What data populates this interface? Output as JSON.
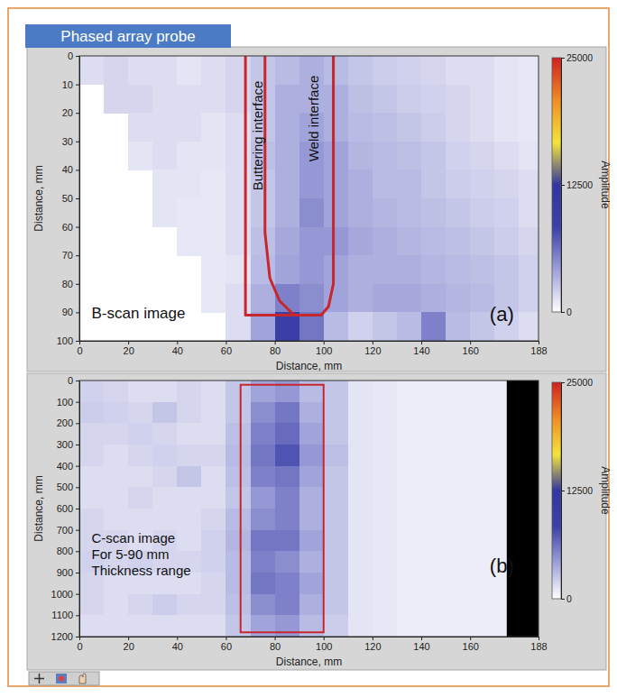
{
  "header": {
    "text": "Phased array probe",
    "color": "#4a7bc4"
  },
  "chart_data": [
    {
      "type": "heatmap",
      "x_label": "Distance, mm",
      "y_label": "Distance, mm",
      "xlim": [
        0,
        188
      ],
      "ylim": [
        100,
        0
      ],
      "xticks": [
        0,
        20,
        40,
        60,
        80,
        100,
        120,
        140,
        160,
        188
      ],
      "yticks": [
        0,
        10,
        20,
        30,
        40,
        50,
        60,
        70,
        80,
        90,
        100
      ],
      "cells": {
        "x_edges": [
          0,
          10,
          20,
          30,
          40,
          50,
          60,
          70,
          80,
          90,
          100,
          110,
          120,
          130,
          140,
          150,
          160,
          170,
          180,
          188
        ],
        "y_edges": [
          0,
          10,
          20,
          30,
          40,
          50,
          60,
          70,
          80,
          90,
          100
        ],
        "values": [
          [
            1500,
            1800,
            1500,
            1500,
            1200,
            1500,
            1800,
            2500,
            3000,
            3500,
            3000,
            2500,
            2200,
            2000,
            1800,
            1500,
            1500,
            1200,
            1000
          ],
          [
            null,
            1800,
            1800,
            1500,
            1500,
            1500,
            1800,
            2500,
            3500,
            3500,
            3500,
            2800,
            2500,
            2200,
            2000,
            1800,
            1500,
            1200,
            1000
          ],
          [
            null,
            null,
            1500,
            1500,
            1500,
            1200,
            1500,
            2500,
            3500,
            4000,
            3500,
            3000,
            2800,
            2500,
            2200,
            1800,
            1500,
            1200,
            1000
          ],
          [
            null,
            null,
            1200,
            1500,
            1200,
            1200,
            1500,
            2800,
            3500,
            4500,
            4000,
            3200,
            3000,
            2800,
            2500,
            2000,
            1800,
            1500,
            1200
          ],
          [
            null,
            null,
            null,
            1200,
            1200,
            1000,
            1500,
            2500,
            3500,
            4500,
            4000,
            3500,
            3000,
            3000,
            2500,
            2200,
            2000,
            1800,
            1500
          ],
          [
            null,
            null,
            null,
            1200,
            1000,
            1000,
            1500,
            2500,
            3500,
            5000,
            4000,
            3500,
            3200,
            3000,
            2800,
            2500,
            2200,
            2000,
            1500
          ],
          [
            null,
            null,
            null,
            null,
            1000,
            1000,
            1500,
            2800,
            3800,
            4500,
            4500,
            3800,
            3500,
            3200,
            3000,
            2800,
            2500,
            2200,
            1800
          ],
          [
            null,
            null,
            null,
            null,
            null,
            1000,
            1200,
            3000,
            4000,
            4500,
            4000,
            3500,
            3500,
            3500,
            3200,
            3000,
            2800,
            2500,
            2000
          ],
          [
            null,
            null,
            null,
            null,
            null,
            1000,
            1500,
            3500,
            5500,
            5000,
            4000,
            3500,
            3800,
            3800,
            3500,
            3200,
            3000,
            2500,
            2000
          ],
          [
            null,
            null,
            null,
            null,
            null,
            null,
            1500,
            4000,
            9000,
            6000,
            3000,
            2000,
            2500,
            3000,
            5500,
            3000,
            2500,
            2000,
            1500
          ]
        ]
      },
      "colorbar": {
        "label": "Amplitude",
        "range": [
          0,
          25000
        ],
        "ticks": [
          0,
          12500,
          25000
        ],
        "colors": [
          "#ffffff",
          "#9da0d8",
          "#3c40a8",
          "#3336a0",
          "#f4e43a",
          "#f08c24",
          "#d21f1f"
        ]
      },
      "outlines": [
        {
          "x": [
            68,
            68,
            99,
            102,
            104,
            104
          ],
          "y": [
            0,
            91,
            91,
            88,
            80,
            0
          ],
          "color": "#c8262b"
        },
        {
          "x": [
            76,
            76,
            78,
            82,
            88
          ],
          "y": [
            0,
            62,
            78,
            86,
            91
          ],
          "color": "#c8262b"
        }
      ],
      "vertical_labels": [
        {
          "text": "Buttering interface",
          "x": 73,
          "y": 28
        },
        {
          "text": "Weld interface",
          "x": 96,
          "y": 22
        }
      ],
      "labels": [
        {
          "lines": [
            "B-scan image"
          ],
          "x": 5,
          "y": 92
        }
      ],
      "panel_label": {
        "text": "(a)",
        "x": 168,
        "y": 93
      }
    },
    {
      "type": "heatmap",
      "x_label": "Distance, mm",
      "y_label": "Distance, mm",
      "xlim": [
        0,
        188
      ],
      "ylim": [
        1200,
        0
      ],
      "xticks": [
        0,
        20,
        40,
        60,
        80,
        100,
        120,
        140,
        160,
        188
      ],
      "yticks": [
        0,
        100,
        200,
        300,
        400,
        500,
        600,
        700,
        800,
        900,
        1000,
        1100,
        1200
      ],
      "cells": {
        "x_edges": [
          0,
          10,
          20,
          30,
          40,
          50,
          60,
          70,
          80,
          90,
          100,
          110,
          120,
          130,
          140,
          150,
          160,
          170,
          175
        ],
        "y_edges": [
          0,
          100,
          200,
          300,
          400,
          500,
          600,
          700,
          800,
          900,
          1000,
          1100,
          1200
        ],
        "values": [
          [
            2000,
            1800,
            1500,
            1500,
            1800,
            1500,
            2500,
            4000,
            4500,
            3000,
            2500,
            1200,
            1000,
            800,
            800,
            800,
            800,
            800
          ],
          [
            2200,
            2000,
            1800,
            2500,
            1800,
            1500,
            2500,
            5000,
            6000,
            3500,
            2500,
            1200,
            1000,
            800,
            800,
            800,
            800,
            800
          ],
          [
            1800,
            1800,
            2000,
            1800,
            1500,
            1500,
            2800,
            5500,
            6500,
            4000,
            2500,
            1200,
            1000,
            800,
            800,
            800,
            800,
            800
          ],
          [
            1800,
            1500,
            1800,
            2000,
            1800,
            1800,
            3000,
            6000,
            7500,
            4500,
            2800,
            1200,
            1000,
            800,
            800,
            800,
            800,
            800
          ],
          [
            1500,
            1500,
            1500,
            1800,
            2500,
            1500,
            2800,
            5500,
            6000,
            4000,
            2500,
            1200,
            1000,
            800,
            800,
            800,
            800,
            800
          ],
          [
            1500,
            1500,
            1800,
            1500,
            1500,
            1500,
            2500,
            4500,
            5500,
            3500,
            2500,
            1200,
            1000,
            800,
            800,
            800,
            800,
            800
          ],
          [
            1800,
            1500,
            1500,
            1500,
            1500,
            1800,
            3000,
            5000,
            5500,
            3500,
            2500,
            1200,
            1000,
            800,
            800,
            800,
            800,
            800
          ],
          [
            1800,
            1800,
            1500,
            1800,
            1500,
            2000,
            3200,
            6000,
            6000,
            4000,
            2500,
            1200,
            1000,
            800,
            800,
            800,
            800,
            800
          ],
          [
            2000,
            1800,
            2000,
            1800,
            1800,
            2000,
            3000,
            5500,
            5000,
            3500,
            2500,
            1200,
            1000,
            800,
            800,
            800,
            800,
            800
          ],
          [
            1800,
            1500,
            1500,
            1500,
            1500,
            1800,
            3000,
            6000,
            5500,
            4000,
            2500,
            1200,
            1000,
            800,
            800,
            800,
            800,
            800
          ],
          [
            1800,
            1500,
            1800,
            2200,
            1800,
            1800,
            2800,
            5000,
            5500,
            3500,
            2500,
            1200,
            1000,
            800,
            800,
            800,
            800,
            800
          ],
          [
            1500,
            1500,
            1500,
            1500,
            1500,
            1500,
            2500,
            4000,
            4500,
            3000,
            2200,
            1200,
            1000,
            800,
            800,
            800,
            800,
            800
          ]
        ]
      },
      "no_data": {
        "x": [
          175,
          188
        ],
        "color": "#000000"
      },
      "colorbar": {
        "label": "Amplitude",
        "range": [
          0,
          25000
        ],
        "ticks": [
          0,
          12500,
          25000
        ],
        "colors": [
          "#ffffff",
          "#9da0d8",
          "#3c40a8",
          "#3336a0",
          "#f4e43a",
          "#f08c24",
          "#d21f1f"
        ]
      },
      "boxes": [
        {
          "x": [
            66,
            100
          ],
          "y": [
            20,
            1180
          ],
          "color": "#c8262b"
        }
      ],
      "labels": [
        {
          "lines": [
            "C-scan image",
            "For 5-90 mm",
            "Thickness range"
          ],
          "x": 5,
          "y": 760
        }
      ],
      "panel_label": {
        "text": "(b)",
        "x": 168,
        "y": 900
      }
    }
  ]
}
